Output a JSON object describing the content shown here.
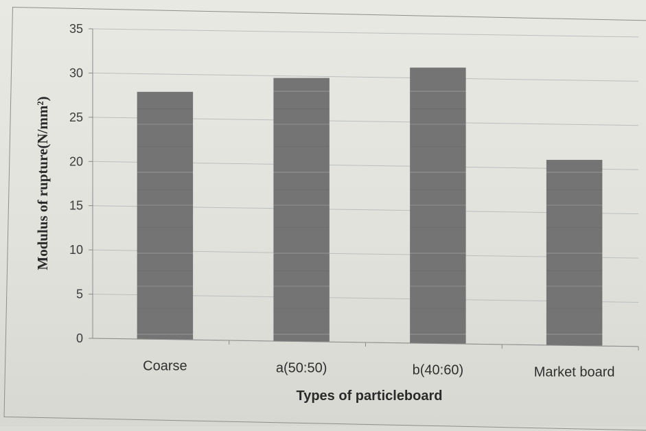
{
  "chart_data": {
    "type": "bar",
    "categories": [
      "Coarse",
      "a(50:50)",
      "b(40:60)",
      "Market board"
    ],
    "values": [
      28,
      29.8,
      31.2,
      21
    ],
    "xlabel": "Types of particleboard",
    "ylabel": "Modulus of rupture(N/mm²)",
    "ylim": [
      0,
      35
    ],
    "yticks": [
      "0",
      "5",
      "10",
      "15",
      "20",
      "25",
      "30",
      "35"
    ],
    "grid": true,
    "legend": "none",
    "colors": {
      "bar": "#727272",
      "gridline": "#b9bfbf",
      "axis": "#8a8a8a"
    }
  }
}
